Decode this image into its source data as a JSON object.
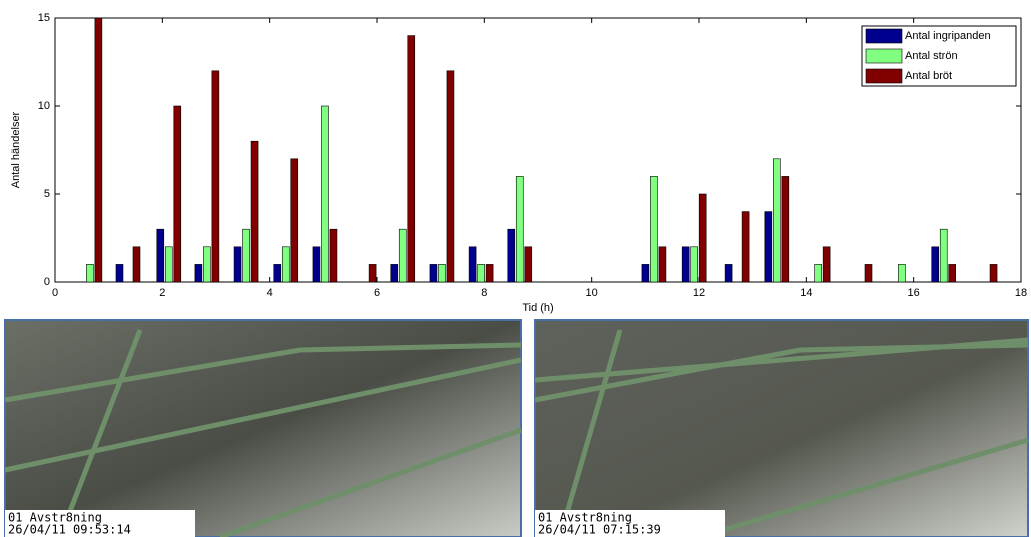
{
  "chart_data": {
    "type": "bar",
    "x_label": "Tid (h)",
    "y_label": "Antal händelser",
    "x": [
      0.65,
      1.36,
      2.12,
      2.83,
      3.56,
      4.3,
      5.03,
      5.76,
      6.48,
      7.21,
      7.94,
      8.66,
      11.16,
      11.91,
      12.71,
      13.45,
      14.22,
      15.0,
      15.78,
      16.56,
      17.33
    ],
    "series": [
      {
        "name": "Antal ingripanden",
        "color": "#00008f",
        "values": [
          0,
          1,
          3,
          1,
          2,
          1,
          2,
          0,
          1,
          1,
          2,
          3,
          1,
          2,
          1,
          4,
          0,
          0,
          0,
          2,
          0
        ]
      },
      {
        "name": "Antal strön",
        "color": "#80ff80",
        "values": [
          1,
          0,
          2,
          2,
          3,
          2,
          10,
          0,
          3,
          1,
          1,
          6,
          6,
          2,
          0,
          7,
          1,
          0,
          1,
          3,
          0
        ]
      },
      {
        "name": "Antal bröt",
        "color": "#800000",
        "values": [
          15,
          2,
          10,
          12,
          8,
          7,
          3,
          1,
          14,
          12,
          1,
          2,
          2,
          5,
          4,
          6,
          2,
          1,
          0,
          1,
          1
        ]
      }
    ],
    "xlim": [
      0,
      18
    ],
    "xticks": [
      0,
      2,
      4,
      6,
      8,
      10,
      12,
      14,
      16,
      18
    ],
    "ylim": [
      0,
      15
    ],
    "yticks": [
      0,
      5,
      10,
      15
    ],
    "legend": "top-right",
    "grid": false
  },
  "camera_frames": [
    {
      "line1": "01 Avstr8ning",
      "line2": "26/04/11  09:53:14"
    },
    {
      "line1": "01 Avstr8ning",
      "line2": "26/04/11  07:15:39"
    }
  ]
}
